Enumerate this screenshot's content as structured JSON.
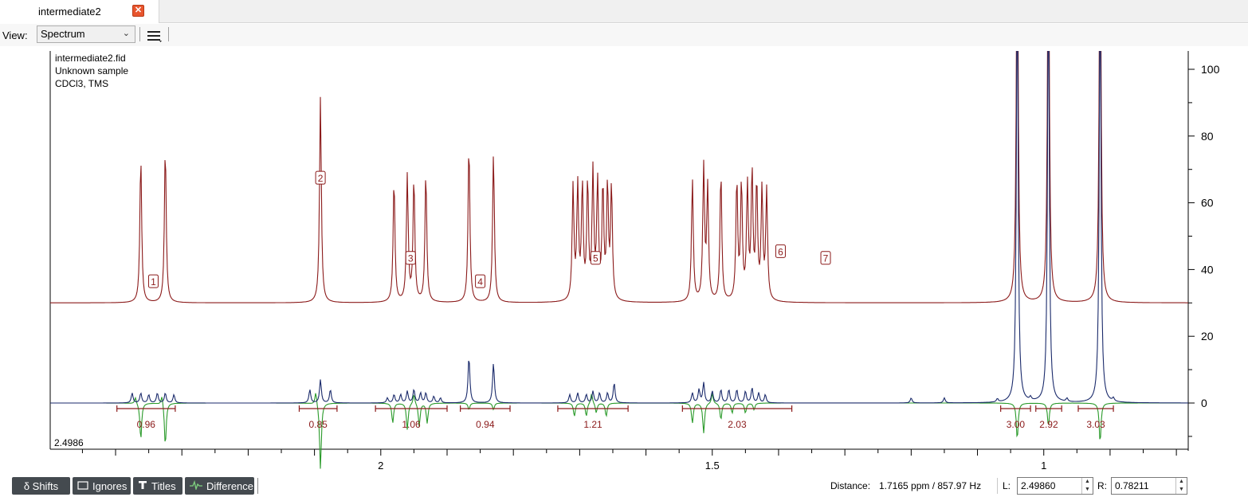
{
  "tab": {
    "title": "intermediate2",
    "close_glyph": "✕"
  },
  "toolbar": {
    "view_label": "View:",
    "view_value": "Spectrum",
    "menu_icon": "hamburger-menu-icon"
  },
  "file_info": {
    "filename": "intermediate2.fid",
    "sample": "Unknown sample",
    "solvent": "CDCl3, TMS"
  },
  "chart_data": {
    "type": "line",
    "title": "",
    "xlabel": "",
    "ylabel": "",
    "x_reversed": true,
    "xlim": [
      2.4986,
      0.78211
    ],
    "ylim": [
      -20,
      105
    ],
    "x_ticks": [
      2,
      1.5,
      1
    ],
    "y_ticks": [
      100,
      80,
      60,
      40,
      20,
      0
    ],
    "corner_label": "2.4986",
    "series": [
      {
        "role": "reference",
        "color": "#8b1a1a",
        "baseline": 30,
        "peaks": [
          [
            2.362,
            44
          ],
          [
            2.325,
            47
          ],
          [
            2.091,
            62
          ],
          [
            1.98,
            37
          ],
          [
            1.96,
            38
          ],
          [
            1.95,
            37
          ],
          [
            1.932,
            39
          ],
          [
            1.867,
            48
          ],
          [
            1.83,
            45
          ],
          [
            1.71,
            34
          ],
          [
            1.703,
            34
          ],
          [
            1.696,
            34
          ],
          [
            1.688,
            35
          ],
          [
            1.68,
            38
          ],
          [
            1.673,
            35
          ],
          [
            1.665,
            34
          ],
          [
            1.658,
            34
          ],
          [
            1.652,
            34
          ],
          [
            1.53,
            37
          ],
          [
            1.513,
            40
          ],
          [
            1.507,
            34
          ],
          [
            1.487,
            39
          ],
          [
            1.463,
            36
          ],
          [
            1.456,
            35
          ],
          [
            1.447,
            34
          ],
          [
            1.44,
            38
          ],
          [
            1.433,
            35
          ],
          [
            1.425,
            33
          ],
          [
            1.418,
            33
          ],
          [
            1.04,
            125
          ],
          [
            0.993,
            125
          ],
          [
            0.915,
            125
          ]
        ]
      },
      {
        "role": "simulated",
        "color": "#1a2a6b",
        "baseline": 0,
        "peaks": [
          [
            2.375,
            3
          ],
          [
            2.362,
            3
          ],
          [
            2.35,
            2.5
          ],
          [
            2.337,
            3
          ],
          [
            2.325,
            3
          ],
          [
            2.312,
            2.5
          ],
          [
            2.107,
            4
          ],
          [
            2.091,
            7
          ],
          [
            2.076,
            4
          ],
          [
            1.99,
            1.5
          ],
          [
            1.98,
            2.5
          ],
          [
            1.97,
            2.5
          ],
          [
            1.96,
            3.5
          ],
          [
            1.95,
            4
          ],
          [
            1.94,
            3
          ],
          [
            1.932,
            3
          ],
          [
            1.92,
            2
          ],
          [
            1.91,
            1.5
          ],
          [
            1.867,
            14
          ],
          [
            1.83,
            12
          ],
          [
            1.715,
            2.5
          ],
          [
            1.703,
            3
          ],
          [
            1.69,
            2.5
          ],
          [
            1.68,
            3.5
          ],
          [
            1.67,
            3
          ],
          [
            1.658,
            3
          ],
          [
            1.648,
            6
          ],
          [
            1.53,
            3
          ],
          [
            1.52,
            4
          ],
          [
            1.513,
            6
          ],
          [
            1.5,
            3.5
          ],
          [
            1.487,
            4
          ],
          [
            1.475,
            4
          ],
          [
            1.463,
            4
          ],
          [
            1.45,
            3.5
          ],
          [
            1.44,
            4.5
          ],
          [
            1.43,
            3
          ],
          [
            1.42,
            2.5
          ],
          [
            1.2,
            1.5
          ],
          [
            1.15,
            1.5
          ],
          [
            1.04,
            125
          ],
          [
            0.993,
            125
          ],
          [
            0.915,
            125
          ],
          [
            1.07,
            1
          ],
          [
            1.02,
            1
          ],
          [
            0.965,
            1
          ],
          [
            0.895,
            1
          ]
        ]
      },
      {
        "role": "difference",
        "color": "#2a9a2a",
        "baseline": 0,
        "peaks": [
          [
            2.362,
            -11
          ],
          [
            2.325,
            -13
          ],
          [
            2.37,
            2
          ],
          [
            2.33,
            3
          ],
          [
            2.091,
            -20
          ],
          [
            2.098,
            4
          ],
          [
            1.982,
            -6
          ],
          [
            1.96,
            -8
          ],
          [
            1.942,
            -7
          ],
          [
            1.93,
            -6
          ],
          [
            1.95,
            3
          ],
          [
            1.867,
            -2
          ],
          [
            1.83,
            -2
          ],
          [
            1.708,
            -4
          ],
          [
            1.69,
            -4
          ],
          [
            1.675,
            -3
          ],
          [
            1.66,
            -4
          ],
          [
            1.682,
            3
          ],
          [
            1.53,
            -6
          ],
          [
            1.513,
            -9
          ],
          [
            1.487,
            -5
          ],
          [
            1.47,
            -3
          ],
          [
            1.45,
            -3
          ],
          [
            1.437,
            -2
          ],
          [
            1.5,
            3
          ],
          [
            1.04,
            -20
          ],
          [
            0.993,
            -7
          ],
          [
            0.915,
            -20
          ],
          [
            1.04,
            9
          ],
          [
            0.915,
            8
          ]
        ]
      }
    ],
    "peak_labels": [
      {
        "label": "1",
        "x": 2.343,
        "y": 36.5
      },
      {
        "label": "2",
        "x": 2.091,
        "y": 67.5
      },
      {
        "label": "3",
        "x": 1.955,
        "y": 43.5
      },
      {
        "label": "4",
        "x": 1.85,
        "y": 36.5
      },
      {
        "label": "5",
        "x": 1.676,
        "y": 43.5
      },
      {
        "label": "6",
        "x": 1.397,
        "y": 45.5
      },
      {
        "label": "7",
        "x": 1.329,
        "y": 43.5
      }
    ],
    "integrals": [
      {
        "label": "0.96",
        "from": 2.398,
        "to": 2.31
      },
      {
        "label": "0.85",
        "from": 2.123,
        "to": 2.066
      },
      {
        "label": "1.06",
        "from": 2.008,
        "to": 1.9
      },
      {
        "label": "0.94",
        "from": 1.88,
        "to": 1.805
      },
      {
        "label": "1.21",
        "from": 1.733,
        "to": 1.627
      },
      {
        "label": "2.03",
        "from": 1.545,
        "to": 1.38
      },
      {
        "label": "3.00",
        "from": 1.065,
        "to": 1.02
      },
      {
        "label": "2.92",
        "from": 1.012,
        "to": 0.973
      },
      {
        "label": "3.03",
        "from": 0.948,
        "to": 0.895
      }
    ]
  },
  "bottom": {
    "buttons": [
      {
        "label": "δ Shifts",
        "icon": ""
      },
      {
        "label": "Ignores",
        "icon": "rectangle-icon"
      },
      {
        "label": "Titles",
        "icon": "text-t-icon"
      },
      {
        "label": "Difference",
        "icon": "spectrum-wave-icon"
      }
    ],
    "distance_label": "Distance:",
    "distance_value": "1.7165 ppm / 857.97 Hz",
    "l_label": "L:",
    "l_value": "2.49860",
    "r_label": "R:",
    "r_value": "0.78211"
  }
}
